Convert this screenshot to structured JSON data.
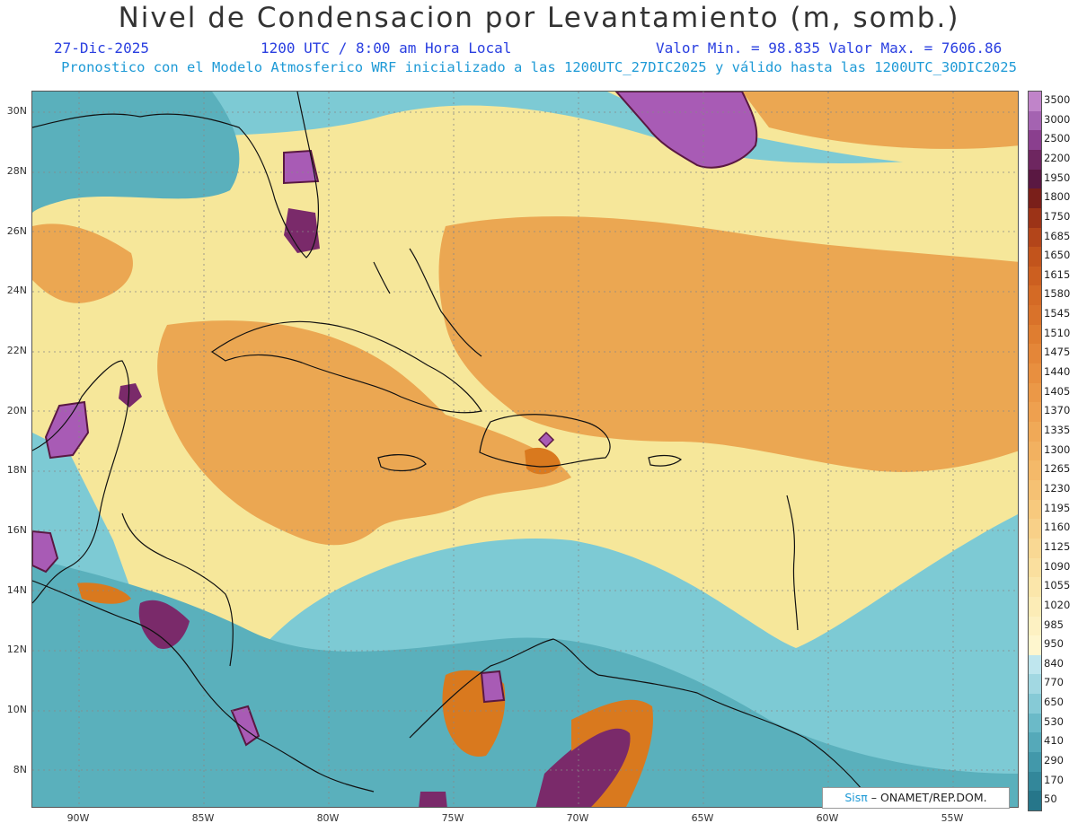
{
  "header": {
    "title": "Nivel de Condensacion por Levantamiento (m, somb.)",
    "date": "27-Dic-2025",
    "time": "1200 UTC / 8:00 am Hora Local",
    "range": "Valor Min. = 98.835  Valor Max. = 7606.86",
    "description": "Pronostico con el Modelo Atmosferico WRF inicializado a las 1200UTC_27DIC2025 y válido hasta las  1200UTC_30DIC2025"
  },
  "map": {
    "lat_labels": [
      "30N",
      "28N",
      "26N",
      "24N",
      "22N",
      "20N",
      "18N",
      "16N",
      "14N",
      "12N",
      "10N",
      "8N"
    ],
    "lon_labels": [
      "90W",
      "85W",
      "80W",
      "75W",
      "70W",
      "65W",
      "60W",
      "55W"
    ],
    "colors": {
      "sea_lcl": "#7dcad4",
      "low_lcl": "#5ab0bc",
      "mid_lcl": "#f6e79a",
      "high_lcl": "#eba752",
      "higher_lcl": "#d9791e",
      "very_high_lcl": "#7a2a6a",
      "extreme_lcl": "#a85bb5"
    }
  },
  "colorbar": {
    "labels": [
      "3500",
      "3000",
      "2500",
      "2200",
      "1950",
      "1800",
      "1750",
      "1685",
      "1650",
      "1615",
      "1580",
      "1545",
      "1510",
      "1475",
      "1440",
      "1405",
      "1370",
      "1335",
      "1300",
      "1265",
      "1230",
      "1195",
      "1160",
      "1125",
      "1090",
      "1055",
      "1020",
      "985",
      "950",
      "840",
      "770",
      "650",
      "530",
      "410",
      "290",
      "170",
      "50"
    ],
    "colors": [
      "#c084c9",
      "#a463b1",
      "#8a3f8e",
      "#6e2660",
      "#5a1842",
      "#7a1f1a",
      "#9c3317",
      "#b3451a",
      "#c2541c",
      "#cc5f20",
      "#d46a25",
      "#d9722a",
      "#df7d30",
      "#e48638",
      "#e88f3f",
      "#eb9847",
      "#eea04f",
      "#f0a957",
      "#f2b160",
      "#f4b969",
      "#f5c173",
      "#f7c97d",
      "#f8d088",
      "#f9d893",
      "#fadf9e",
      "#fbe6aa",
      "#fcecb6",
      "#fdf1c2",
      "#fef6ce",
      "#bfe6ee",
      "#a2d8e2",
      "#86cad6",
      "#6bbac8",
      "#55a9b9",
      "#4298aa",
      "#33879a",
      "#26768a"
    ]
  },
  "credit": {
    "logo": "Sisπ",
    "text": "– ONAMET/REP.DOM."
  }
}
